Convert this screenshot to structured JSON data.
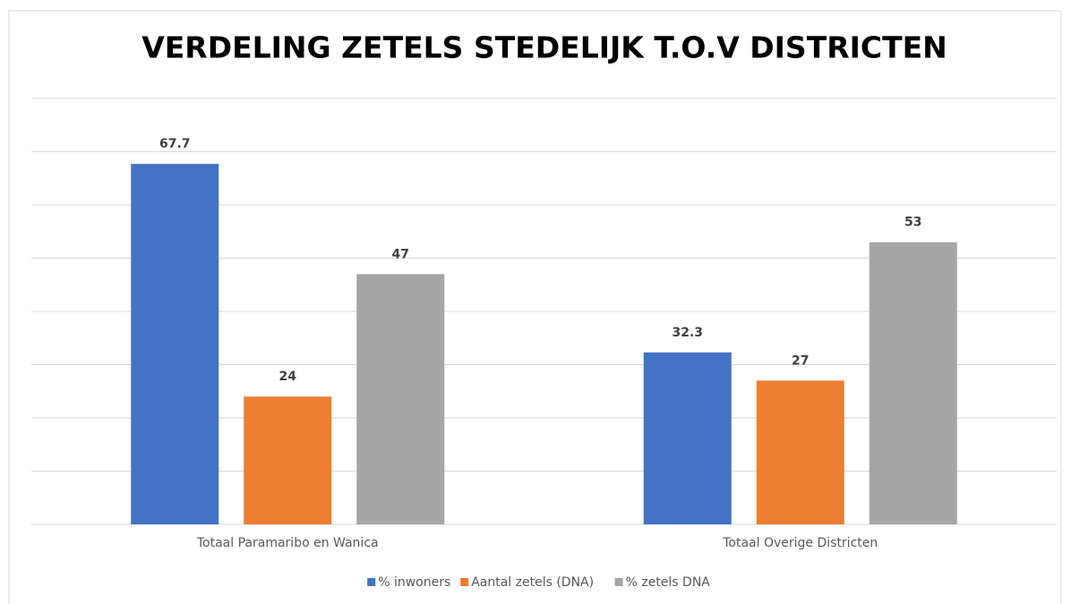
{
  "chart_data": {
    "type": "bar",
    "title": "VERDELING ZETELS STEDELIJK T.O.V DISTRICTEN",
    "categories": [
      "Totaal Paramaribo en Wanica",
      "Totaal Overige Districten"
    ],
    "series": [
      {
        "name": "% inwoners",
        "color": "#4472c4",
        "values": [
          67.7,
          32.3
        ]
      },
      {
        "name": "Aantal zetels (DNA)",
        "color": "#ed7d31",
        "values": [
          24,
          27
        ]
      },
      {
        "name": "% zetels DNA",
        "color": "#a5a5a5",
        "values": [
          47,
          53
        ]
      }
    ],
    "ylim": [
      0,
      80
    ],
    "yticks": [
      0,
      10,
      20,
      30,
      40,
      50,
      60,
      70,
      80
    ],
    "grid": true,
    "legend": "bottom"
  }
}
